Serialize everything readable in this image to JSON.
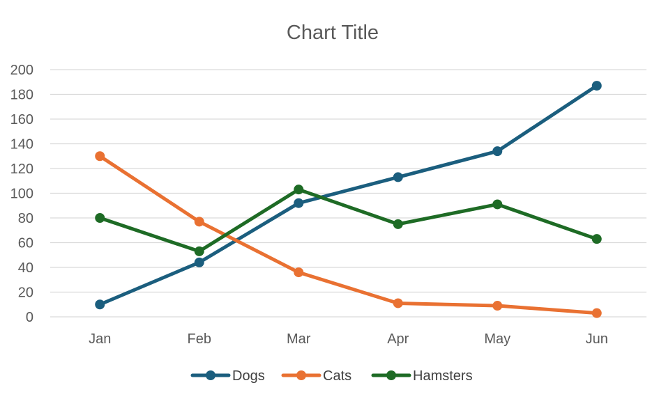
{
  "chart_data": {
    "type": "line",
    "title": "Chart Title",
    "xlabel": "",
    "ylabel": "",
    "categories": [
      "Jan",
      "Feb",
      "Mar",
      "Apr",
      "May",
      "Jun"
    ],
    "ylim": [
      0,
      200
    ],
    "yticks": [
      0,
      20,
      40,
      60,
      80,
      100,
      120,
      140,
      160,
      180,
      200
    ],
    "grid": true,
    "legend_position": "bottom",
    "series": [
      {
        "name": "Dogs",
        "color": "#1b5e7e",
        "values": [
          10,
          44,
          92,
          113,
          134,
          187
        ]
      },
      {
        "name": "Cats",
        "color": "#e97132",
        "values": [
          130,
          77,
          36,
          11,
          9,
          3
        ]
      },
      {
        "name": "Hamsters",
        "color": "#1e6b25",
        "values": [
          80,
          53,
          103,
          75,
          91,
          63
        ]
      }
    ]
  }
}
